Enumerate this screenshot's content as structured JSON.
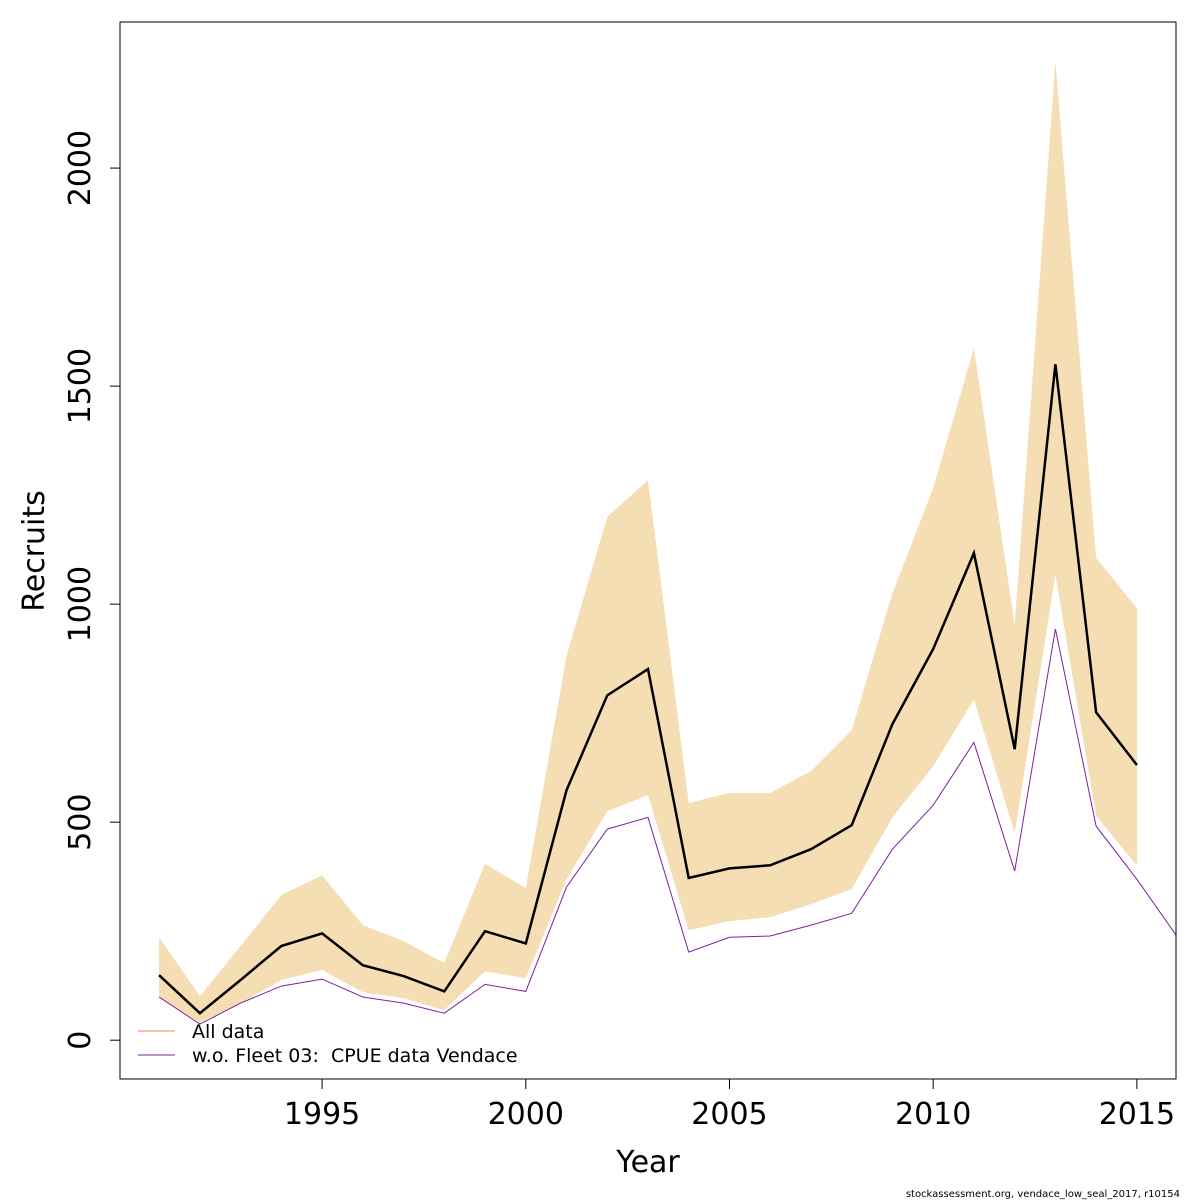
{
  "chart_data": {
    "type": "line",
    "xlabel": "Year",
    "ylabel": "Recruits",
    "footer": "stockassessment.org, vendace_low_seal_2017, r10154",
    "x": [
      1991,
      1992,
      1993,
      1994,
      1995,
      1996,
      1997,
      1998,
      1999,
      2000,
      2001,
      2002,
      2003,
      2004,
      2005,
      2006,
      2007,
      2008,
      2009,
      2010,
      2011,
      2012,
      2013,
      2014,
      2015,
      2016
    ],
    "band": {
      "color": "#f5deb3",
      "upper": [
        236,
        101,
        216,
        333,
        378,
        264,
        227,
        177,
        404,
        349,
        881,
        1200,
        1284,
        544,
        567,
        567,
        617,
        711,
        1025,
        1266,
        1587,
        952,
        2243,
        1106,
        991,
        null
      ],
      "lower": [
        96,
        41,
        85,
        138,
        161,
        110,
        96,
        69,
        158,
        142,
        369,
        525,
        562,
        252,
        273,
        282,
        312,
        346,
        511,
        628,
        782,
        475,
        1067,
        514,
        401,
        null
      ]
    },
    "estimate_line_color": "#000000",
    "series": [
      {
        "name": "All data",
        "color": "#fa8072",
        "values": [
          149,
          62,
          138,
          216,
          245,
          172,
          147,
          112,
          250,
          222,
          573,
          791,
          851,
          372,
          394,
          401,
          438,
          493,
          725,
          897,
          1117,
          667,
          1550,
          752,
          631,
          null
        ]
      },
      {
        "name": "w.o. Fleet 03:  CPUE data Vendace",
        "color": "#7f1f9f",
        "values": [
          99,
          37,
          85,
          124,
          140,
          99,
          85,
          62,
          128,
          112,
          351,
          484,
          511,
          202,
          236,
          239,
          264,
          291,
          438,
          539,
          683,
          388,
          943,
          491,
          369,
          236
        ]
      }
    ],
    "xlim": [
      1990.04,
      2015.96
    ],
    "ylim": [
      -89,
      2335
    ],
    "xticks": [
      1995,
      2000,
      2005,
      2010,
      2015
    ],
    "yticks": [
      0,
      500,
      1000,
      1500,
      2000
    ],
    "legend": "bottom-left"
  }
}
